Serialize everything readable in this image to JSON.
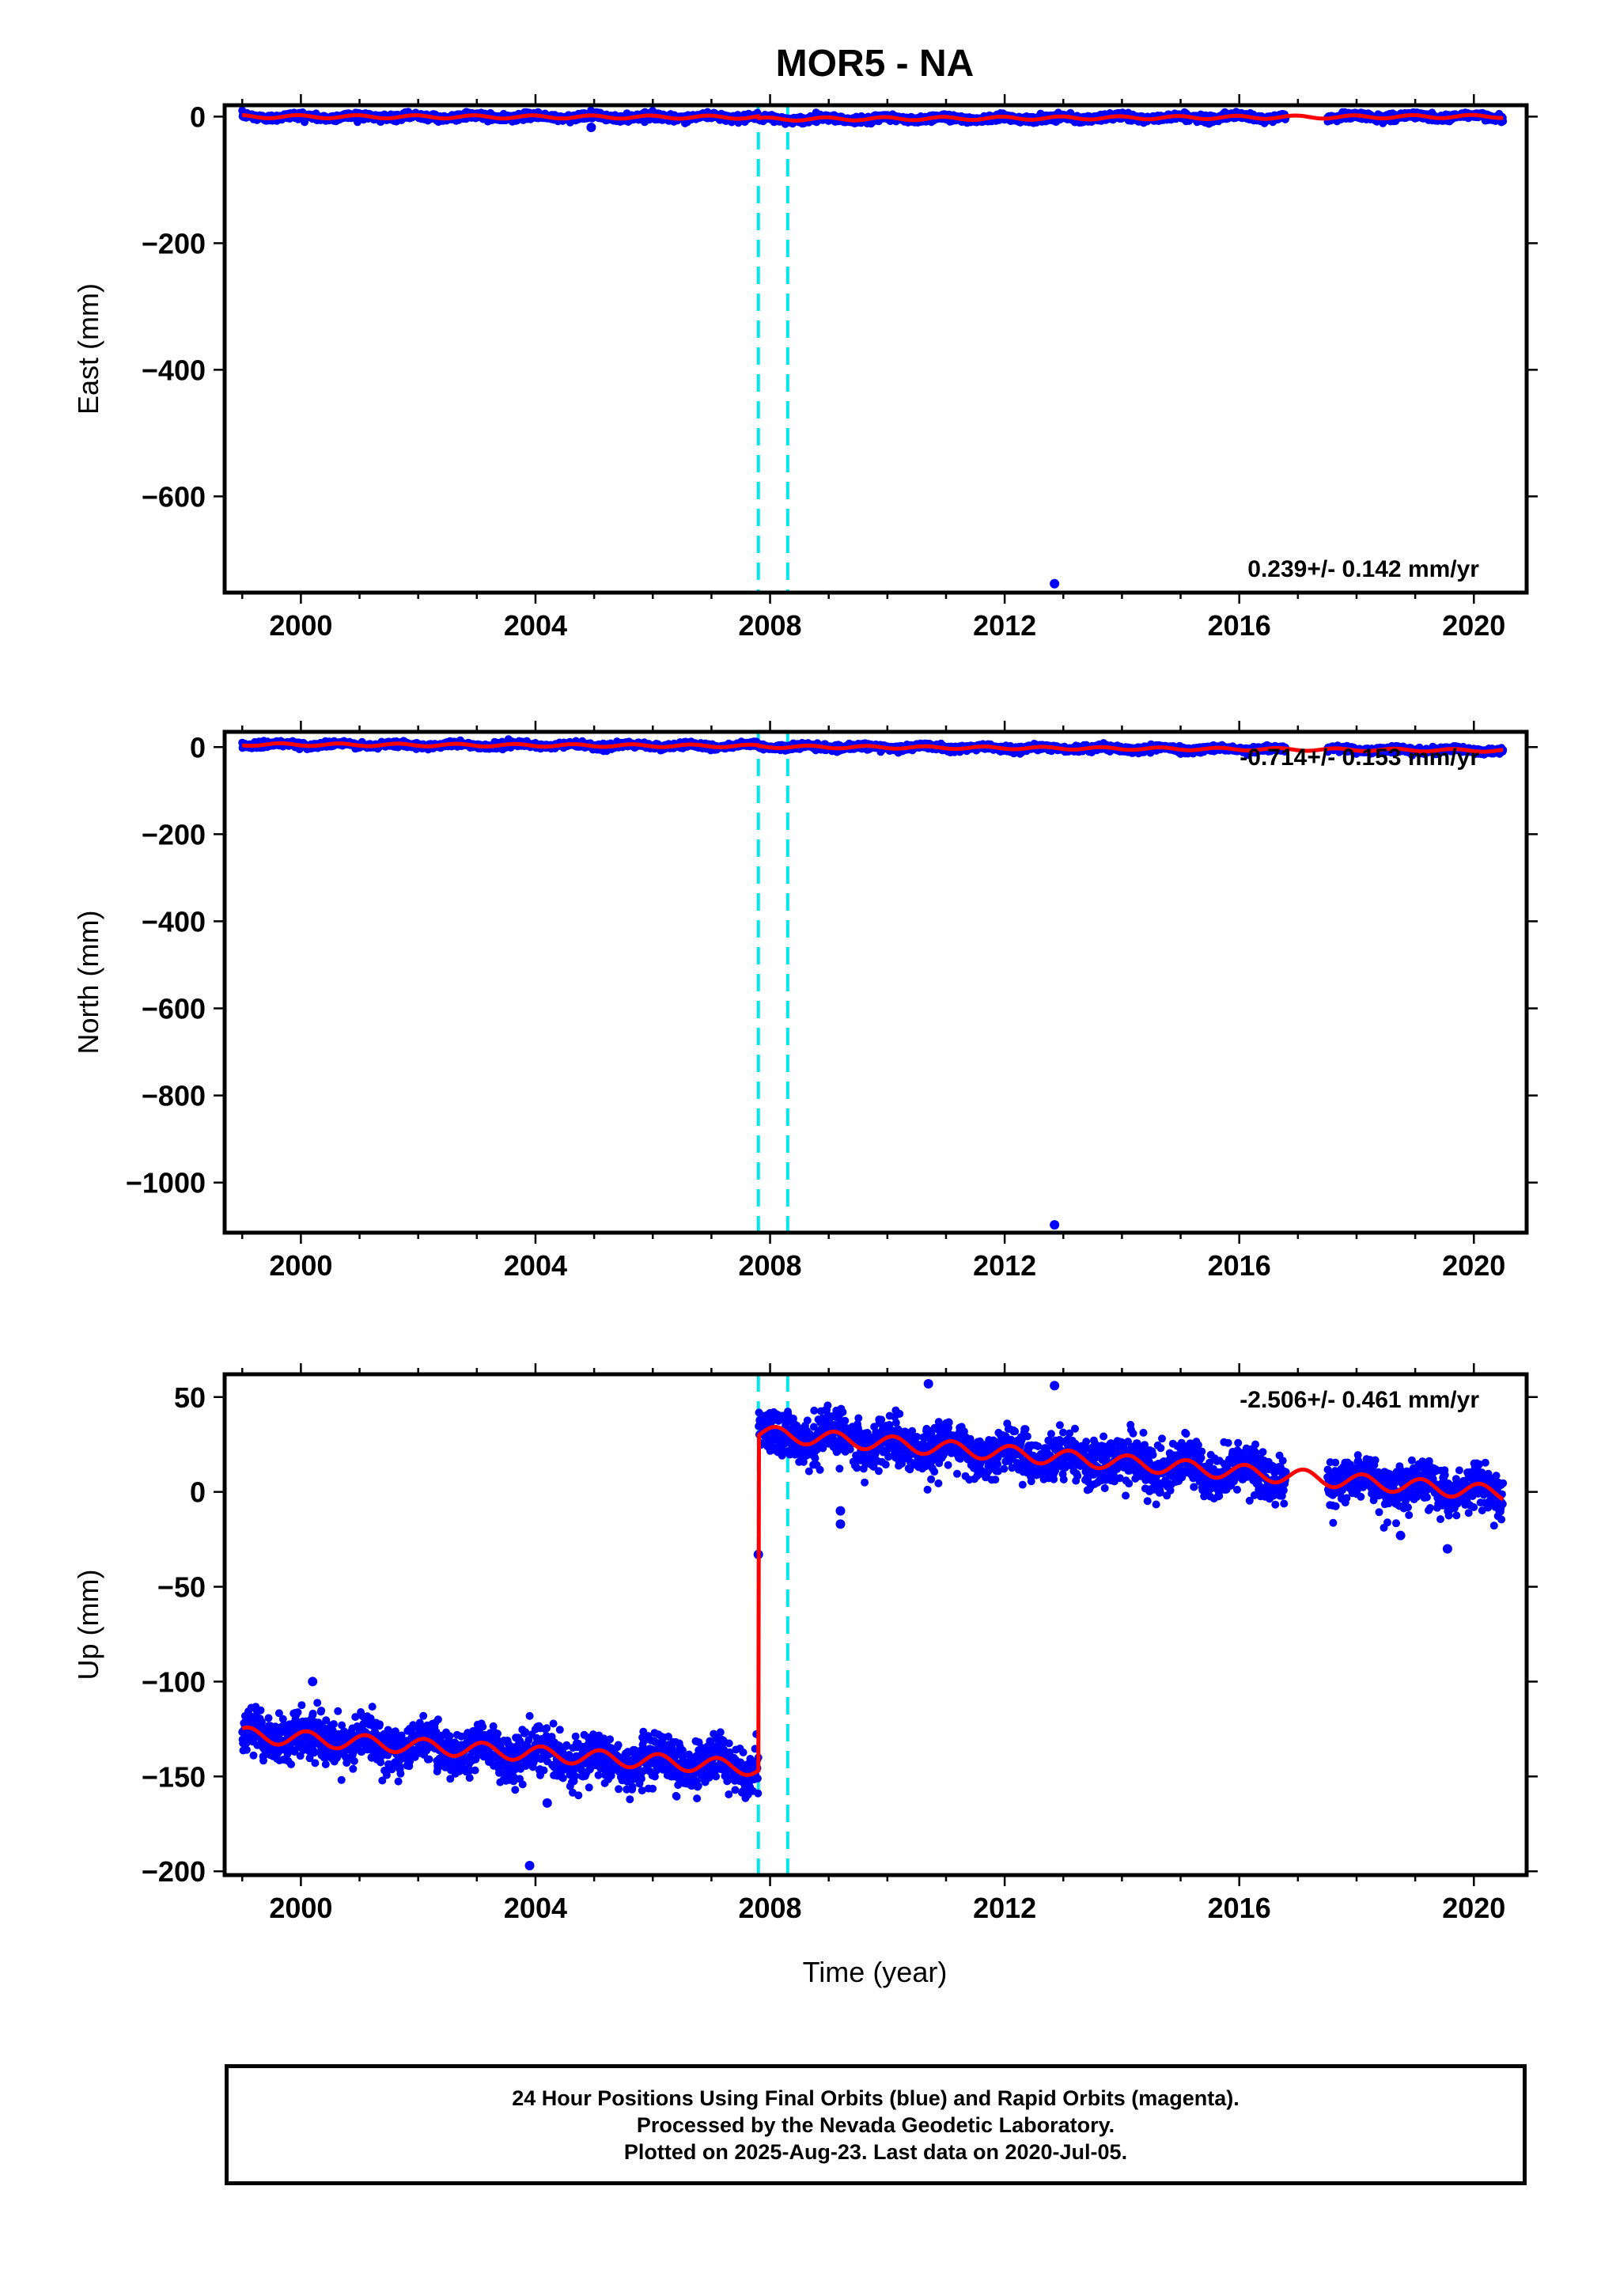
{
  "figure": {
    "title": "MOR5 - NA",
    "xlabel": "Time (year)",
    "footer": [
      "24 Hour Positions Using Final Orbits (blue) and Rapid Orbits (magenta).",
      "Processed by the Nevada Geodetic Laboratory.",
      "Plotted on 2025-Aug-23. Last data on 2020-Jul-05."
    ]
  },
  "colors": {
    "final_orbits": "#0000ff",
    "model": "#ff0000",
    "breaks": "#00e5ee",
    "frame": "#000000"
  },
  "chart_data": [
    {
      "type": "scatter",
      "ylabel": "East (mm)",
      "xlim": [
        1998.7,
        2020.9
      ],
      "ylim": [
        -752,
        18
      ],
      "xticks": [
        2000,
        2004,
        2008,
        2012,
        2016,
        2020
      ],
      "yticks": [
        0,
        -200,
        -400,
        -600
      ],
      "rate_label": "0.239+/- 0.142 mm/yr",
      "breaks": [
        2007.8,
        2008.3
      ],
      "data_gap": [
        2016.8,
        2017.5
      ],
      "model": {
        "segments": [
          {
            "start": 1999.0,
            "end": 2007.8,
            "offset": 0.0,
            "rate": -0.1
          },
          {
            "start": 2007.8,
            "end": 2020.5,
            "offset": -4.0,
            "rate": 0.35
          }
        ],
        "seasonal_amplitude": 2.5,
        "seasonal_phase": 0.3
      },
      "scatter_sigma": 2.6,
      "outliers": [
        {
          "x": 2012.85,
          "y": -738
        },
        {
          "x": 2004.95,
          "y": -17
        }
      ]
    },
    {
      "type": "scatter",
      "ylabel": "North (mm)",
      "xlim": [
        1998.7,
        2020.9
      ],
      "ylim": [
        -1115,
        35
      ],
      "xticks": [
        2000,
        2004,
        2008,
        2012,
        2016,
        2020
      ],
      "yticks": [
        0,
        -200,
        -400,
        -600,
        -800,
        -1000
      ],
      "rate_label": "-0.714+/- 0.153 mm/yr",
      "breaks": [
        2007.8,
        2008.3
      ],
      "data_gap": [
        2016.8,
        2017.5
      ],
      "model": {
        "segments": [
          {
            "start": 1999.0,
            "end": 2007.8,
            "offset": 6.0,
            "rate": -0.4
          },
          {
            "start": 2007.8,
            "end": 2020.5,
            "offset": 1.0,
            "rate": -0.7
          }
        ],
        "seasonal_amplitude": 3.0,
        "seasonal_phase": 0.6
      },
      "scatter_sigma": 3.2,
      "outliers": [
        {
          "x": 2012.85,
          "y": -1097
        }
      ]
    },
    {
      "type": "scatter",
      "ylabel": "Up (mm)",
      "xlim": [
        1998.7,
        2020.9
      ],
      "ylim": [
        -202,
        62
      ],
      "xticks": [
        2000,
        2004,
        2008,
        2012,
        2016,
        2020
      ],
      "yticks": [
        50,
        0,
        -50,
        -100,
        -150,
        -200
      ],
      "rate_label": "-2.506+/- 0.461 mm/yr",
      "breaks": [
        2007.8,
        2008.3
      ],
      "data_gap": [
        2016.8,
        2017.5
      ],
      "model": {
        "segments": [
          {
            "start": 1999.0,
            "end": 2007.8,
            "offset": -128.0,
            "rate": -2.0
          },
          {
            "start": 2007.8,
            "end": 2020.5,
            "offset": 31.0,
            "rate": -2.5
          }
        ],
        "seasonal_amplitude": 4.0,
        "seasonal_phase": 0.15
      },
      "scatter_sigma": 6.0,
      "outliers": [
        {
          "x": 2003.9,
          "y": -197
        },
        {
          "x": 2007.8,
          "y": -33
        },
        {
          "x": 2009.2,
          "y": -17
        },
        {
          "x": 2009.2,
          "y": -10
        },
        {
          "x": 2010.7,
          "y": 57
        },
        {
          "x": 2012.85,
          "y": 56
        },
        {
          "x": 2018.75,
          "y": -23
        },
        {
          "x": 2019.55,
          "y": -30
        },
        {
          "x": 2004.2,
          "y": -164
        },
        {
          "x": 2000.2,
          "y": -100
        }
      ]
    }
  ]
}
